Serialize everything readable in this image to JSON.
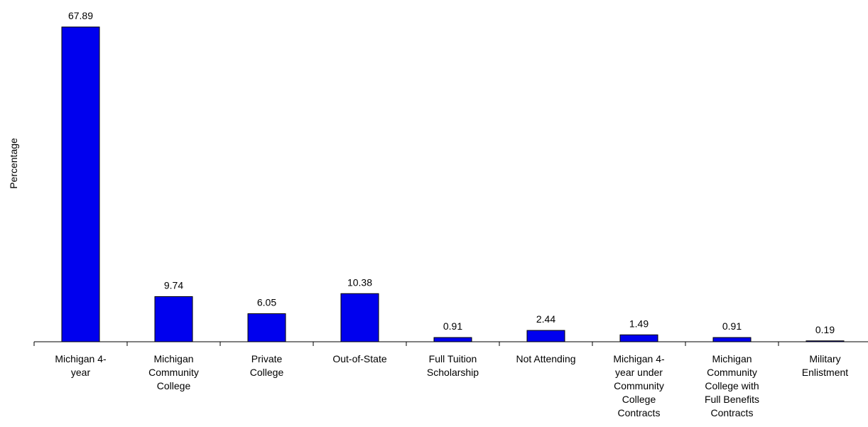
{
  "chart_data": {
    "type": "bar",
    "title": "",
    "xlabel": "",
    "ylabel": "Percentage",
    "ylim": [
      0,
      68.5
    ],
    "grid": false,
    "legend": "none",
    "bar_color": "#0000ee",
    "categories": [
      [
        "Michigan 4-",
        "year"
      ],
      [
        "Michigan",
        "Community",
        "College"
      ],
      [
        "Private",
        "College"
      ],
      [
        "Out-of-State"
      ],
      [
        "Full Tuition",
        "Scholarship"
      ],
      [
        "Not Attending"
      ],
      [
        "Michigan 4-",
        "year under",
        "Community",
        "College",
        "Contracts"
      ],
      [
        "Michigan",
        "Community",
        "College with",
        "Full Benefits",
        "Contracts"
      ],
      [
        "Military",
        "Enlistment"
      ]
    ],
    "values": [
      67.89,
      9.74,
      6.05,
      10.38,
      0.91,
      2.44,
      1.49,
      0.91,
      0.19
    ],
    "value_labels": [
      "67.89",
      "9.74",
      "6.05",
      "10.38",
      "0.91",
      "2.44",
      "1.49",
      "0.91",
      "0.19"
    ]
  }
}
